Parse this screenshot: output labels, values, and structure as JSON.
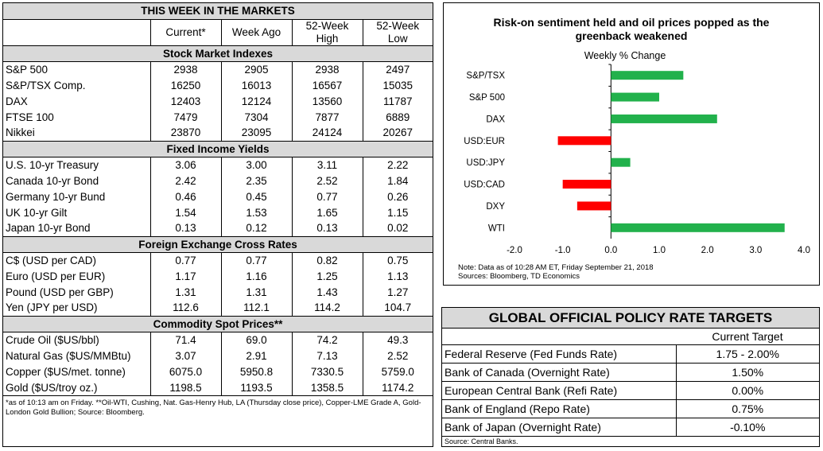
{
  "markets": {
    "title": "THIS WEEK IN THE MARKETS",
    "headers": [
      "Current*",
      "Week Ago",
      "52-Week High",
      "52-Week Low"
    ],
    "header_lines": [
      [
        "Current*"
      ],
      [
        "Week Ago"
      ],
      [
        "52-Week",
        "High"
      ],
      [
        "52-Week",
        "Low"
      ]
    ],
    "sections": [
      {
        "title": "Stock Market Indexes",
        "rows": [
          {
            "label": "S&P 500",
            "values": [
              "2938",
              "2905",
              "2938",
              "2497"
            ]
          },
          {
            "label": "S&P/TSX Comp.",
            "values": [
              "16250",
              "16013",
              "16567",
              "15035"
            ]
          },
          {
            "label": "DAX",
            "values": [
              "12403",
              "12124",
              "13560",
              "11787"
            ]
          },
          {
            "label": "FTSE 100",
            "values": [
              "7479",
              "7304",
              "7877",
              "6889"
            ]
          },
          {
            "label": "Nikkei",
            "values": [
              "23870",
              "23095",
              "24124",
              "20267"
            ]
          }
        ]
      },
      {
        "title": "Fixed Income Yields",
        "rows": [
          {
            "label": "U.S. 10-yr Treasury",
            "values": [
              "3.06",
              "3.00",
              "3.11",
              "2.22"
            ]
          },
          {
            "label": "Canada 10-yr Bond",
            "values": [
              "2.42",
              "2.35",
              "2.52",
              "1.84"
            ]
          },
          {
            "label": "Germany 10-yr Bund",
            "values": [
              "0.46",
              "0.45",
              "0.77",
              "0.26"
            ]
          },
          {
            "label": "UK 10-yr Gilt",
            "values": [
              "1.54",
              "1.53",
              "1.65",
              "1.15"
            ]
          },
          {
            "label": "Japan 10-yr Bond",
            "values": [
              "0.13",
              "0.12",
              "0.13",
              "0.02"
            ]
          }
        ]
      },
      {
        "title": "Foreign Exchange Cross Rates",
        "rows": [
          {
            "label": "C$ (USD per CAD)",
            "values": [
              "0.77",
              "0.77",
              "0.82",
              "0.75"
            ]
          },
          {
            "label": "Euro (USD per EUR)",
            "values": [
              "1.17",
              "1.16",
              "1.25",
              "1.13"
            ]
          },
          {
            "label": "Pound (USD per GBP)",
            "values": [
              "1.31",
              "1.31",
              "1.43",
              "1.27"
            ]
          },
          {
            "label": "Yen (JPY per USD)",
            "values": [
              "112.6",
              "112.1",
              "114.2",
              "104.7"
            ]
          }
        ]
      },
      {
        "title": "Commodity Spot Prices**",
        "rows": [
          {
            "label": "Crude Oil ($US/bbl)",
            "values": [
              "71.4",
              "69.0",
              "74.2",
              "49.3"
            ]
          },
          {
            "label": "Natural Gas ($US/MMBtu)",
            "values": [
              "3.07",
              "2.91",
              "7.13",
              "2.52"
            ]
          },
          {
            "label": "Copper ($US/met. tonne)",
            "values": [
              "6075.0",
              "5950.8",
              "7330.5",
              "5759.0"
            ]
          },
          {
            "label": "Gold ($US/troy oz.)",
            "values": [
              "1198.5",
              "1193.5",
              "1358.5",
              "1174.2"
            ]
          }
        ]
      }
    ],
    "footnote": "*as of 10:13 am on Friday. **Oil-WTI, Cushing, Nat. Gas-Henry Hub, LA (Thursday close price), Copper-LME Grade A, Gold-London Gold Bullion; Source: Bloomberg."
  },
  "chart_data": {
    "type": "bar",
    "orientation": "horizontal",
    "title": "Risk-on sentiment held and oil prices popped as the greenback weakened",
    "title_lines": [
      "Risk-on sentiment held and oil prices popped as the",
      "greenback weakened"
    ],
    "subtitle": "Weekly % Change",
    "categories": [
      "S&P/TSX",
      "S&P 500",
      "DAX",
      "USD:EUR",
      "USD:JPY",
      "USD:CAD",
      "DXY",
      "WTI"
    ],
    "values": [
      1.5,
      1.0,
      2.2,
      -1.1,
      0.4,
      -1.0,
      -0.7,
      3.6
    ],
    "xlim": [
      -2.0,
      4.0
    ],
    "xticks": [
      "-2.0",
      "-1.0",
      "0.0",
      "1.0",
      "2.0",
      "3.0",
      "4.0"
    ],
    "positive_color": "#22b14c",
    "negative_color": "#ff0000",
    "note_lines": [
      "Note: Data as of  10:28 AM  ET,  Friday September 21, 2018",
      "Sources: Bloomberg, TD Economics"
    ]
  },
  "policy": {
    "title": "GLOBAL OFFICIAL POLICY RATE TARGETS",
    "col_header": "Current Target",
    "rows": [
      {
        "label": "Federal Reserve (Fed Funds Rate)",
        "value": "1.75 - 2.00%"
      },
      {
        "label": "Bank of Canada (Overnight Rate)",
        "value": "1.50%"
      },
      {
        "label": "European Central Bank (Refi Rate)",
        "value": "0.00%"
      },
      {
        "label": "Bank of England (Repo Rate)",
        "value": "0.75%"
      },
      {
        "label": "Bank of Japan (Overnight Rate)",
        "value": "-0.10%"
      }
    ],
    "source": "Source: Central Banks."
  }
}
